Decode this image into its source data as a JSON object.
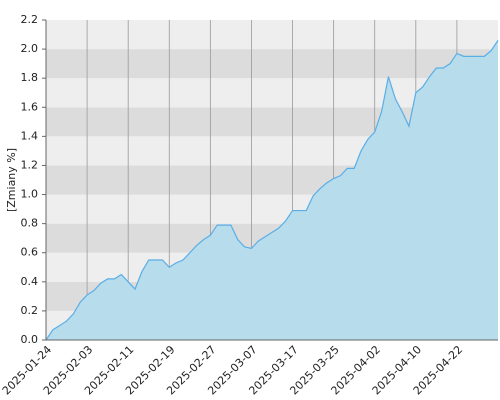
{
  "chart_data": {
    "type": "area",
    "y_label": "[Zmiany %]",
    "categories": [
      "2025-01-24",
      null,
      null,
      null,
      null,
      null,
      "2025-02-03",
      null,
      null,
      null,
      null,
      null,
      "2025-02-11",
      null,
      null,
      null,
      null,
      null,
      "2025-02-19",
      null,
      null,
      null,
      null,
      null,
      "2025-02-27",
      null,
      null,
      null,
      null,
      null,
      "2025-03-07",
      null,
      null,
      null,
      null,
      null,
      "2025-03-17",
      null,
      null,
      null,
      null,
      null,
      "2025-03-25",
      null,
      null,
      null,
      null,
      null,
      "2025-04-02",
      null,
      null,
      null,
      null,
      null,
      "2025-04-10",
      null,
      null,
      null,
      null,
      null,
      "2025-04-22",
      null,
      null,
      null,
      null,
      null,
      null
    ],
    "values": [
      0.0,
      0.07,
      0.1,
      0.13,
      0.18,
      0.26,
      0.31,
      0.34,
      0.39,
      0.42,
      0.42,
      0.45,
      0.4,
      0.35,
      0.47,
      0.55,
      0.55,
      0.55,
      0.5,
      0.53,
      0.55,
      0.6,
      0.65,
      0.69,
      0.72,
      0.79,
      0.79,
      0.79,
      0.69,
      0.64,
      0.63,
      0.68,
      0.71,
      0.74,
      0.77,
      0.82,
      0.89,
      0.89,
      0.89,
      0.99,
      1.04,
      1.08,
      1.11,
      1.13,
      1.18,
      1.18,
      1.3,
      1.38,
      1.43,
      1.57,
      1.81,
      1.66,
      1.57,
      1.47,
      1.7,
      1.74,
      1.81,
      1.87,
      1.87,
      1.9,
      1.97,
      1.95,
      1.95,
      1.95,
      1.95,
      1.99,
      2.06
    ],
    "color": "#5aaee6",
    "fill": "#b7dcec",
    "ylim": [
      0,
      2.2
    ],
    "yticks": [
      {
        "value": 0,
        "label": "0.0"
      },
      0.2,
      0.4,
      0.6,
      0.8,
      {
        "value": 1,
        "label": "1.0"
      },
      1.2,
      1.4,
      1.6,
      1.8,
      {
        "value": 2,
        "label": "2.0"
      },
      2.2
    ],
    "band_colors": [
      "#eeeeee",
      "#dcdcdc"
    ],
    "grid": true
  }
}
